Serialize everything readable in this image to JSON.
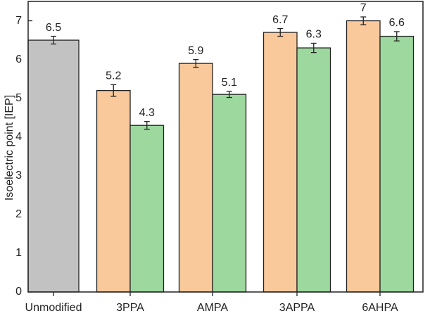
{
  "chart_data": {
    "type": "bar",
    "y_label": "Isoelectric point [IEP]",
    "categories": [
      "Unmodified",
      "3PPA",
      "AMPA",
      "3APPA",
      "6AHPA"
    ],
    "series": [
      {
        "color": "#c2c2c2",
        "values": [
          6.5,
          null,
          null,
          null,
          null
        ],
        "errors": [
          0.1,
          null,
          null,
          null,
          null
        ]
      },
      {
        "color": "#f9c89b",
        "values": [
          null,
          5.2,
          5.9,
          6.7,
          7
        ],
        "errors": [
          null,
          0.15,
          0.1,
          0.1,
          0.1
        ]
      },
      {
        "color": "#9dd89e",
        "values": [
          null,
          4.3,
          5.1,
          6.3,
          6.6
        ],
        "errors": [
          null,
          0.1,
          0.08,
          0.12,
          0.12
        ]
      }
    ],
    "ylim": [
      0,
      7.5
    ],
    "yticks": [
      0,
      1,
      2,
      3,
      4,
      5,
      6,
      7
    ]
  }
}
